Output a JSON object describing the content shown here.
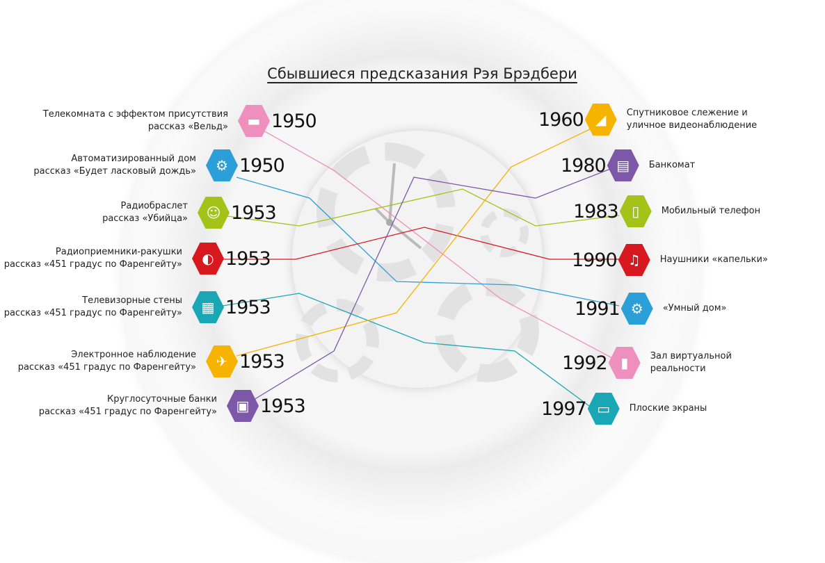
{
  "title": "Сбывшиеся предсказания Рэя Брэдбери",
  "left": [
    {
      "line1": "Телекомната с эффектом присутствия",
      "line2": "рассказ «Вельд»",
      "year": "1950",
      "color": "#ef8fbd",
      "icon": "room-screen-icon"
    },
    {
      "line1": "Автоматизированный дом",
      "line2": "рассказ «Будет ласковый дождь»",
      "year": "1950",
      "color": "#2a9fd8",
      "icon": "gears-house-icon"
    },
    {
      "line1": "Радиобраслет",
      "line2": "рассказ «Убийца»",
      "year": "1953",
      "color": "#a5c219",
      "icon": "man-wristradio-icon"
    },
    {
      "line1": "Радиоприемники-ракушки",
      "line2": "рассказ «451 градус по Фаренгейту»",
      "year": "1953",
      "color": "#d7191f",
      "icon": "ear-icon"
    },
    {
      "line1": "Телевизорные стены",
      "line2": "рассказ «451 градус по Фаренгейту»",
      "year": "1953",
      "color": "#1aa7b5",
      "icon": "tv-icon"
    },
    {
      "line1": "Электронное наблюдение",
      "line2": "рассказ «451 градус по Фаренгейту»",
      "year": "1953",
      "color": "#f6b400",
      "icon": "helicopter-icon"
    },
    {
      "line1": "Круглосуточные банки",
      "line2": "рассказ «451 градус по Фаренгейту»",
      "year": "1953",
      "color": "#7e58a8",
      "icon": "robot-bank-icon"
    }
  ],
  "right": [
    {
      "line1": "Спутниковое слежение и",
      "line2": "уличное видеонаблюдение",
      "year": "1960",
      "color": "#f6b400",
      "icon": "security-camera-icon"
    },
    {
      "line1": "Банкомат",
      "line2": "",
      "year": "1980",
      "color": "#7e58a8",
      "icon": "atm-icon"
    },
    {
      "line1": "Мобильный телефон",
      "line2": "",
      "year": "1983",
      "color": "#a5c219",
      "icon": "mobile-phone-icon"
    },
    {
      "line1": "Наушники «капельки»",
      "line2": "",
      "year": "1990",
      "color": "#d7191f",
      "icon": "earphones-icon"
    },
    {
      "line1": "«Умный дом»",
      "line2": "",
      "year": "1991",
      "color": "#2a9fd8",
      "icon": "gears-house-icon"
    },
    {
      "line1": "Зал виртуальной",
      "line2": "реальности",
      "year": "1992",
      "color": "#ef8fbd",
      "icon": "vr-room-icon"
    },
    {
      "line1": "Плоские экраны",
      "line2": "",
      "year": "1997",
      "color": "#1aa7b5",
      "icon": "flat-screen-icon"
    }
  ]
}
